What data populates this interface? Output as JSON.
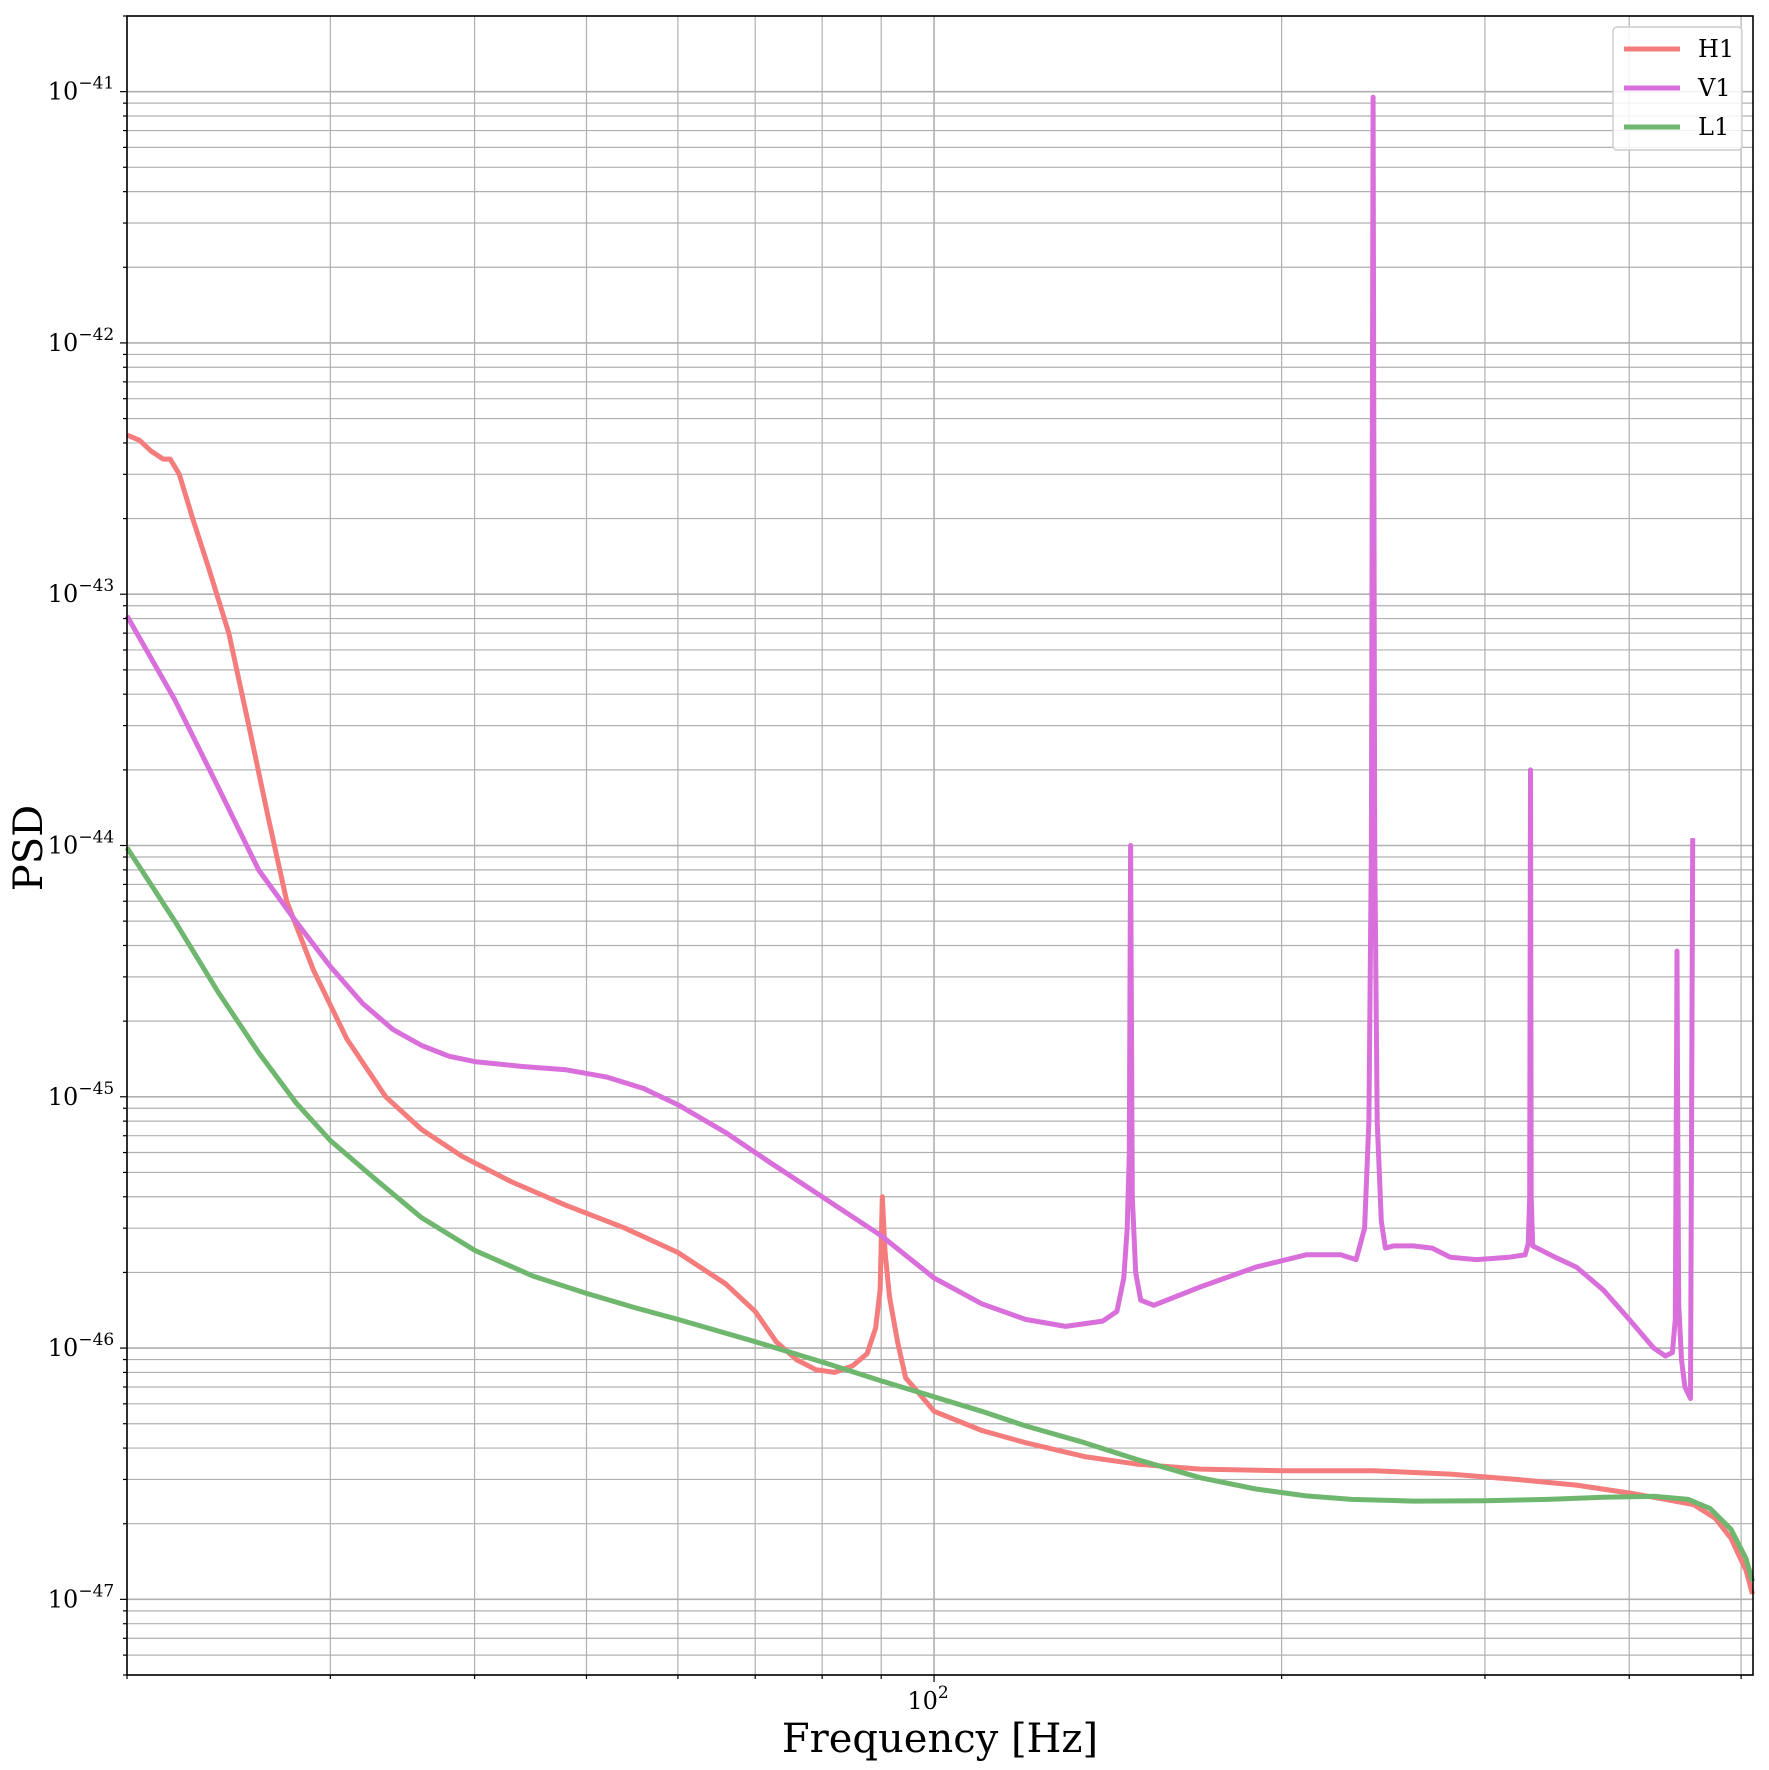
{
  "chart_data": {
    "type": "line",
    "title": "",
    "xlabel": "Frequency [Hz]",
    "ylabel": "PSD",
    "xscale": "log",
    "yscale": "log",
    "xlim": [
      20,
      512
    ],
    "ylim": [
      5e-48,
      2e-41
    ],
    "grid": "both (major and minor)",
    "legend_position": "top-right",
    "x_tick_labels": [
      {
        "value": 100,
        "base": "10",
        "exp": "2"
      }
    ],
    "y_tick_labels": [
      {
        "value": 1e-41,
        "base": "10",
        "exp": "−41"
      },
      {
        "value": 1e-42,
        "base": "10",
        "exp": "−42"
      },
      {
        "value": 1e-43,
        "base": "10",
        "exp": "−43"
      },
      {
        "value": 1e-44,
        "base": "10",
        "exp": "−44"
      },
      {
        "value": 1e-45,
        "base": "10",
        "exp": "−45"
      },
      {
        "value": 1e-46,
        "base": "10",
        "exp": "−46"
      },
      {
        "value": 1e-47,
        "base": "10",
        "exp": "−47"
      }
    ],
    "series": [
      {
        "name": "H1",
        "color": "#f47c7c",
        "points": [
          [
            20,
            4.3e-43
          ],
          [
            20.5,
            4.1e-43
          ],
          [
            21,
            3.7e-43
          ],
          [
            21.5,
            3.45e-43
          ],
          [
            21.8,
            3.45e-43
          ],
          [
            22.2,
            3e-43
          ],
          [
            22.8,
            2e-43
          ],
          [
            23.5,
            1.3e-43
          ],
          [
            24.5,
            7e-44
          ],
          [
            25.5,
            3e-44
          ],
          [
            26.5,
            1.3e-44
          ],
          [
            27.5,
            6e-45
          ],
          [
            29,
            3.2e-45
          ],
          [
            31,
            1.7e-45
          ],
          [
            33.5,
            1e-45
          ],
          [
            36,
            7.4e-46
          ],
          [
            39,
            5.8e-46
          ],
          [
            43,
            4.6e-46
          ],
          [
            48,
            3.7e-46
          ],
          [
            54,
            3e-46
          ],
          [
            60,
            2.4e-46
          ],
          [
            66,
            1.8e-46
          ],
          [
            70,
            1.4e-46
          ],
          [
            73,
            1.06e-46
          ],
          [
            76,
            9e-47
          ],
          [
            79,
            8.2e-47
          ],
          [
            82,
            8e-47
          ],
          [
            85,
            8.5e-47
          ],
          [
            87.5,
            9.5e-47
          ],
          [
            89,
            1.2e-46
          ],
          [
            89.8,
            1.7e-46
          ],
          [
            90.2,
            4e-46
          ],
          [
            90.7,
            2.4e-46
          ],
          [
            91.5,
            1.6e-46
          ],
          [
            93,
            1.05e-46
          ],
          [
            94.5,
            7.6e-47
          ],
          [
            96,
            7e-47
          ],
          [
            100,
            5.6e-47
          ],
          [
            110,
            4.7e-47
          ],
          [
            120,
            4.2e-47
          ],
          [
            135,
            3.7e-47
          ],
          [
            150,
            3.45e-47
          ],
          [
            170,
            3.3e-47
          ],
          [
            200,
            3.25e-47
          ],
          [
            240,
            3.25e-47
          ],
          [
            280,
            3.15e-47
          ],
          [
            320,
            3e-47
          ],
          [
            360,
            2.85e-47
          ],
          [
            400,
            2.65e-47
          ],
          [
            430,
            2.5e-47
          ],
          [
            455,
            2.38e-47
          ],
          [
            475,
            2.1e-47
          ],
          [
            490,
            1.75e-47
          ],
          [
            505,
            1.3e-47
          ],
          [
            511.5,
            1.05e-47
          ]
        ]
      },
      {
        "name": "V1",
        "color": "#d96fdb",
        "points": [
          [
            20,
            8.2e-44
          ],
          [
            22,
            3.8e-44
          ],
          [
            24,
            1.7e-44
          ],
          [
            26,
            8e-45
          ],
          [
            28,
            5e-45
          ],
          [
            30,
            3.3e-45
          ],
          [
            32,
            2.35e-45
          ],
          [
            34,
            1.85e-45
          ],
          [
            36,
            1.6e-45
          ],
          [
            38,
            1.45e-45
          ],
          [
            40,
            1.38e-45
          ],
          [
            44,
            1.32e-45
          ],
          [
            48,
            1.28e-45
          ],
          [
            52,
            1.2e-45
          ],
          [
            56,
            1.08e-45
          ],
          [
            60,
            9.3e-46
          ],
          [
            66,
            7.2e-46
          ],
          [
            72,
            5.5e-46
          ],
          [
            80,
            4e-46
          ],
          [
            90,
            2.8e-46
          ],
          [
            100,
            1.9e-46
          ],
          [
            110,
            1.5e-46
          ],
          [
            120,
            1.3e-46
          ],
          [
            130,
            1.22e-46
          ],
          [
            140,
            1.28e-46
          ],
          [
            144,
            1.4e-46
          ],
          [
            146,
            1.9e-46
          ],
          [
            147,
            3e-46
          ],
          [
            147.6,
            6e-46
          ],
          [
            148.0,
            1e-44
          ],
          [
            148.5,
            4e-46
          ],
          [
            149.5,
            2e-46
          ],
          [
            151,
            1.55e-46
          ],
          [
            155,
            1.48e-46
          ],
          [
            170,
            1.75e-46
          ],
          [
            190,
            2.1e-46
          ],
          [
            210,
            2.35e-46
          ],
          [
            225,
            2.35e-46
          ],
          [
            232,
            2.25e-46
          ],
          [
            236,
            3e-46
          ],
          [
            238,
            8e-46
          ],
          [
            239.2,
            1e-44
          ],
          [
            240,
            9.5e-42
          ],
          [
            240.8,
            1e-44
          ],
          [
            242,
            8e-46
          ],
          [
            244,
            3.2e-46
          ],
          [
            246,
            2.5e-46
          ],
          [
            250,
            2.55e-46
          ],
          [
            260,
            2.55e-46
          ],
          [
            270,
            2.5e-46
          ],
          [
            280,
            2.3e-46
          ],
          [
            295,
            2.25e-46
          ],
          [
            315,
            2.3e-46
          ],
          [
            325,
            2.35e-46
          ],
          [
            327,
            2.6e-46
          ],
          [
            328,
            4e-46
          ],
          [
            328.5,
            2e-44
          ],
          [
            329,
            4e-46
          ],
          [
            330,
            2.55e-46
          ],
          [
            345,
            2.3e-46
          ],
          [
            360,
            2.1e-46
          ],
          [
            380,
            1.7e-46
          ],
          [
            400,
            1.3e-46
          ],
          [
            420,
            1e-46
          ],
          [
            430,
            9.3e-47
          ],
          [
            436,
            9.6e-47
          ],
          [
            438.5,
            1.3e-46
          ],
          [
            439.5,
            1e-45
          ],
          [
            440,
            3.8e-45
          ],
          [
            440.5,
            1e-45
          ],
          [
            441.5,
            1.5e-46
          ],
          [
            444,
            9e-47
          ],
          [
            447,
            7e-47
          ],
          [
            452,
            6.3e-47
          ],
          [
            454,
            1.07e-44
          ]
        ]
      },
      {
        "name": "L1",
        "color": "#6fb66f",
        "points": [
          [
            20,
            9.8e-45
          ],
          [
            22,
            5e-45
          ],
          [
            24,
            2.6e-45
          ],
          [
            26,
            1.5e-45
          ],
          [
            28,
            9.5e-46
          ],
          [
            30,
            6.7e-46
          ],
          [
            33,
            4.6e-46
          ],
          [
            36,
            3.3e-46
          ],
          [
            40,
            2.45e-46
          ],
          [
            45,
            1.93e-46
          ],
          [
            50,
            1.65e-46
          ],
          [
            55,
            1.45e-46
          ],
          [
            60,
            1.3e-46
          ],
          [
            70,
            1.06e-46
          ],
          [
            80,
            8.8e-47
          ],
          [
            90,
            7.4e-47
          ],
          [
            100,
            6.4e-47
          ],
          [
            110,
            5.6e-47
          ],
          [
            120,
            4.9e-47
          ],
          [
            135,
            4.2e-47
          ],
          [
            150,
            3.6e-47
          ],
          [
            170,
            3.05e-47
          ],
          [
            190,
            2.75e-47
          ],
          [
            210,
            2.58e-47
          ],
          [
            230,
            2.5e-47
          ],
          [
            260,
            2.46e-47
          ],
          [
            300,
            2.47e-47
          ],
          [
            340,
            2.5e-47
          ],
          [
            380,
            2.55e-47
          ],
          [
            420,
            2.57e-47
          ],
          [
            450,
            2.5e-47
          ],
          [
            470,
            2.3e-47
          ],
          [
            490,
            1.9e-47
          ],
          [
            505,
            1.45e-47
          ],
          [
            511.5,
            1.18e-47
          ]
        ]
      }
    ]
  }
}
